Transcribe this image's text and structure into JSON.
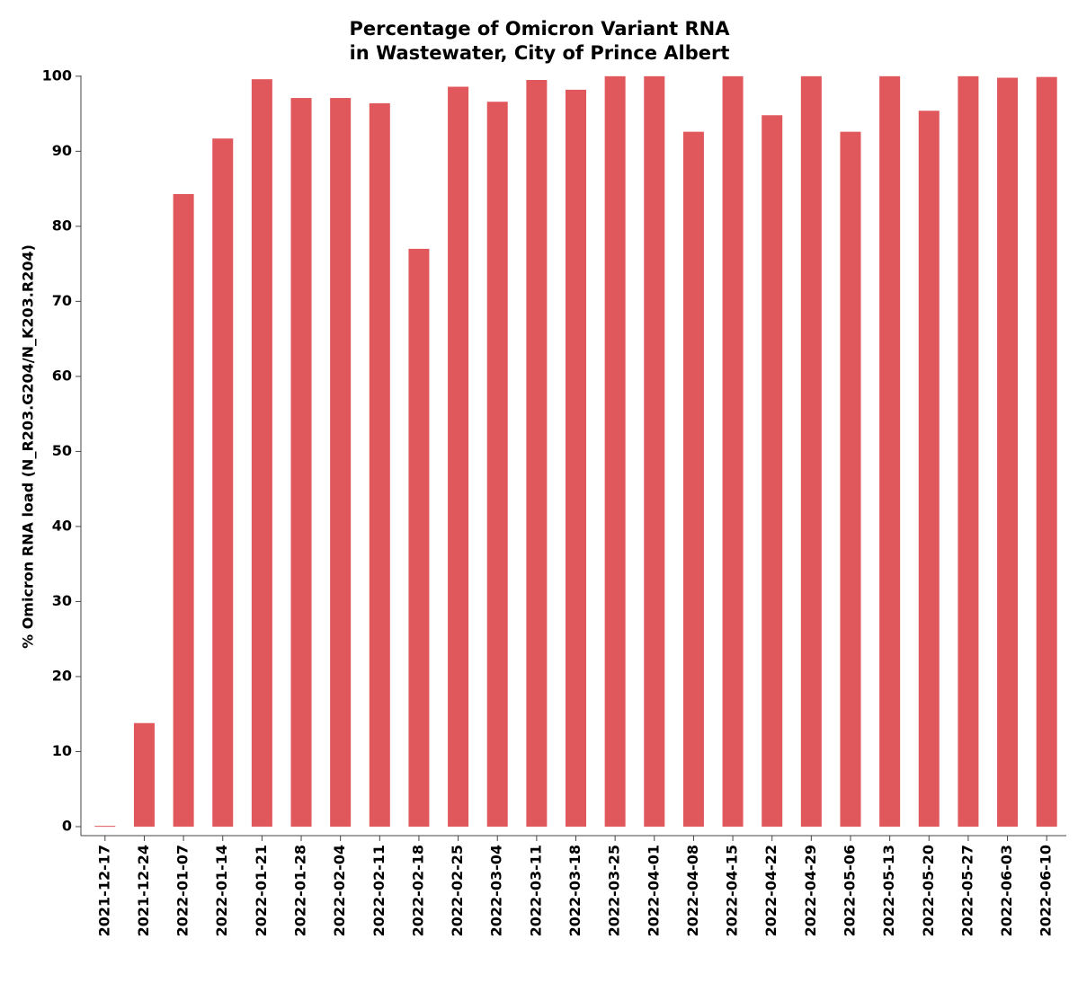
{
  "chart_data": {
    "type": "bar",
    "title": [
      "Percentage of Omicron Variant RNA",
      "in Wastewater, City of Prince Albert"
    ],
    "y_label": "% Omicron RNA load (N_R203.G204/N_K203.R204)",
    "categories": [
      "2021-12-17",
      "2021-12-24",
      "2022-01-07",
      "2022-01-14",
      "2022-01-21",
      "2022-01-28",
      "2022-02-04",
      "2022-02-11",
      "2022-02-18",
      "2022-02-25",
      "2022-03-04",
      "2022-03-11",
      "2022-03-18",
      "2022-03-25",
      "2022-04-01",
      "2022-04-08",
      "2022-04-15",
      "2022-04-22",
      "2022-04-29",
      "2022-05-06",
      "2022-05-13",
      "2022-05-20",
      "2022-05-27",
      "2022-06-03",
      "2022-06-10"
    ],
    "values": [
      0.1,
      13.8,
      84.3,
      91.7,
      99.6,
      97.1,
      97.1,
      96.4,
      77.0,
      98.6,
      96.6,
      99.5,
      98.2,
      100,
      100,
      92.6,
      100,
      94.8,
      100,
      92.6,
      100,
      95.4,
      100,
      99.8,
      99.9
    ],
    "color": "#e0585b",
    "ylim": [
      -1.2,
      100.1
    ],
    "yticks": [
      0,
      10,
      20,
      30,
      40,
      50,
      60,
      70,
      80,
      90,
      100
    ],
    "grid": false
  }
}
